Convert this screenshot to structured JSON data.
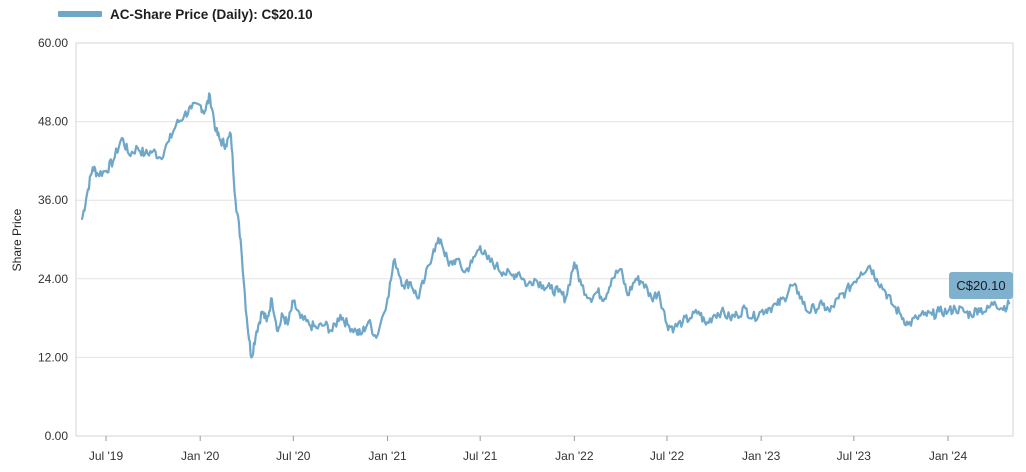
{
  "legend": {
    "label": "AC-Share Price (Daily): C$20.10"
  },
  "tooltip": {
    "label": "C$20.10"
  },
  "colors": {
    "series": "#6fa7c9",
    "tooltip_bg": "#7fb1cf",
    "grid": "#e3e3e3"
  },
  "chart_data": {
    "type": "line",
    "title": "",
    "ylabel": "Share Price",
    "xlabel": "",
    "ylim": [
      0,
      60
    ],
    "yticks": [
      "0.00",
      "12.00",
      "24.00",
      "36.00",
      "48.00",
      "60.00"
    ],
    "xticks": [
      "Jul '19",
      "Jan '20",
      "Jul '20",
      "Jan '21",
      "Jul '21",
      "Jan '22",
      "Jul '22",
      "Jan '23",
      "Jul '23",
      "Jan '24"
    ],
    "xtick_dates": [
      "2019-07-01",
      "2020-01-01",
      "2020-07-01",
      "2021-01-01",
      "2021-07-01",
      "2022-01-01",
      "2022-07-01",
      "2023-01-01",
      "2023-07-01",
      "2024-01-01"
    ],
    "grid": true,
    "series": [
      {
        "name": "AC-Share Price (Daily)",
        "x": [
          "2019-05-15",
          "2019-05-25",
          "2019-06-05",
          "2019-06-15",
          "2019-07-01",
          "2019-07-15",
          "2019-08-01",
          "2019-08-15",
          "2019-09-01",
          "2019-09-15",
          "2019-10-01",
          "2019-10-15",
          "2019-11-01",
          "2019-11-15",
          "2019-12-01",
          "2019-12-15",
          "2020-01-01",
          "2020-01-10",
          "2020-01-20",
          "2020-02-01",
          "2020-02-10",
          "2020-02-20",
          "2020-03-01",
          "2020-03-10",
          "2020-03-20",
          "2020-04-01",
          "2020-04-10",
          "2020-04-20",
          "2020-05-01",
          "2020-05-10",
          "2020-05-20",
          "2020-06-01",
          "2020-06-10",
          "2020-06-20",
          "2020-07-01",
          "2020-07-15",
          "2020-08-01",
          "2020-08-15",
          "2020-09-01",
          "2020-09-15",
          "2020-10-01",
          "2020-10-15",
          "2020-11-01",
          "2020-11-10",
          "2020-11-25",
          "2020-12-10",
          "2021-01-01",
          "2021-01-15",
          "2021-02-01",
          "2021-02-15",
          "2021-03-01",
          "2021-03-15",
          "2021-04-01",
          "2021-04-15",
          "2021-05-01",
          "2021-05-15",
          "2021-06-01",
          "2021-06-15",
          "2021-07-01",
          "2021-07-15",
          "2021-08-01",
          "2021-08-15",
          "2021-09-01",
          "2021-09-15",
          "2021-10-01",
          "2021-10-15",
          "2021-11-01",
          "2021-11-15",
          "2021-12-01",
          "2021-12-15",
          "2022-01-01",
          "2022-01-15",
          "2022-02-01",
          "2022-02-15",
          "2022-03-01",
          "2022-03-15",
          "2022-04-01",
          "2022-04-15",
          "2022-05-01",
          "2022-05-15",
          "2022-06-01",
          "2022-06-15",
          "2022-07-01",
          "2022-07-15",
          "2022-08-01",
          "2022-08-15",
          "2022-09-01",
          "2022-09-15",
          "2022-10-01",
          "2022-10-15",
          "2022-11-01",
          "2022-11-15",
          "2022-12-01",
          "2022-12-15",
          "2023-01-01",
          "2023-01-15",
          "2023-02-01",
          "2023-02-15",
          "2023-03-01",
          "2023-03-15",
          "2023-04-01",
          "2023-04-15",
          "2023-05-01",
          "2023-05-15",
          "2023-06-01",
          "2023-06-15",
          "2023-07-01",
          "2023-07-15",
          "2023-08-01",
          "2023-08-15",
          "2023-09-01",
          "2023-09-15",
          "2023-10-01",
          "2023-10-15",
          "2023-11-01",
          "2023-11-15",
          "2023-12-01",
          "2023-12-15",
          "2024-01-01",
          "2024-01-15",
          "2024-02-01",
          "2024-02-15",
          "2024-03-01",
          "2024-03-15",
          "2024-04-01",
          "2024-04-15",
          "2024-04-30"
        ],
        "y": [
          33.0,
          37.0,
          41.0,
          40.0,
          40.5,
          42.0,
          45.5,
          43.0,
          44.0,
          43.0,
          43.5,
          42.5,
          45.0,
          47.5,
          49.0,
          50.0,
          50.5,
          49.5,
          52.0,
          46.5,
          45.0,
          44.5,
          46.0,
          36.0,
          30.0,
          18.0,
          12.0,
          16.0,
          19.0,
          17.5,
          21.0,
          16.0,
          18.5,
          17.0,
          20.5,
          18.0,
          17.0,
          16.5,
          17.0,
          16.0,
          18.5,
          17.0,
          16.0,
          15.5,
          17.5,
          15.0,
          21.0,
          27.0,
          23.0,
          23.5,
          21.0,
          24.0,
          28.5,
          30.0,
          26.0,
          27.0,
          25.0,
          26.5,
          29.0,
          27.0,
          26.0,
          25.0,
          24.5,
          25.0,
          23.0,
          24.0,
          23.0,
          22.5,
          22.0,
          21.0,
          26.5,
          23.0,
          21.0,
          22.0,
          21.0,
          24.0,
          25.5,
          21.5,
          24.0,
          23.5,
          21.0,
          22.0,
          17.0,
          16.5,
          17.5,
          18.0,
          19.0,
          17.0,
          18.5,
          19.0,
          18.0,
          18.5,
          19.5,
          18.0,
          19.0,
          19.5,
          20.0,
          21.0,
          23.0,
          22.0,
          19.0,
          19.5,
          20.0,
          19.0,
          21.0,
          22.0,
          23.5,
          25.0,
          26.0,
          24.0,
          22.0,
          20.0,
          18.5,
          17.0,
          18.0,
          18.5,
          18.5,
          19.0,
          19.0,
          19.5,
          19.0,
          18.5,
          19.5,
          19.0,
          20.5,
          19.5,
          20.1
        ]
      }
    ]
  }
}
